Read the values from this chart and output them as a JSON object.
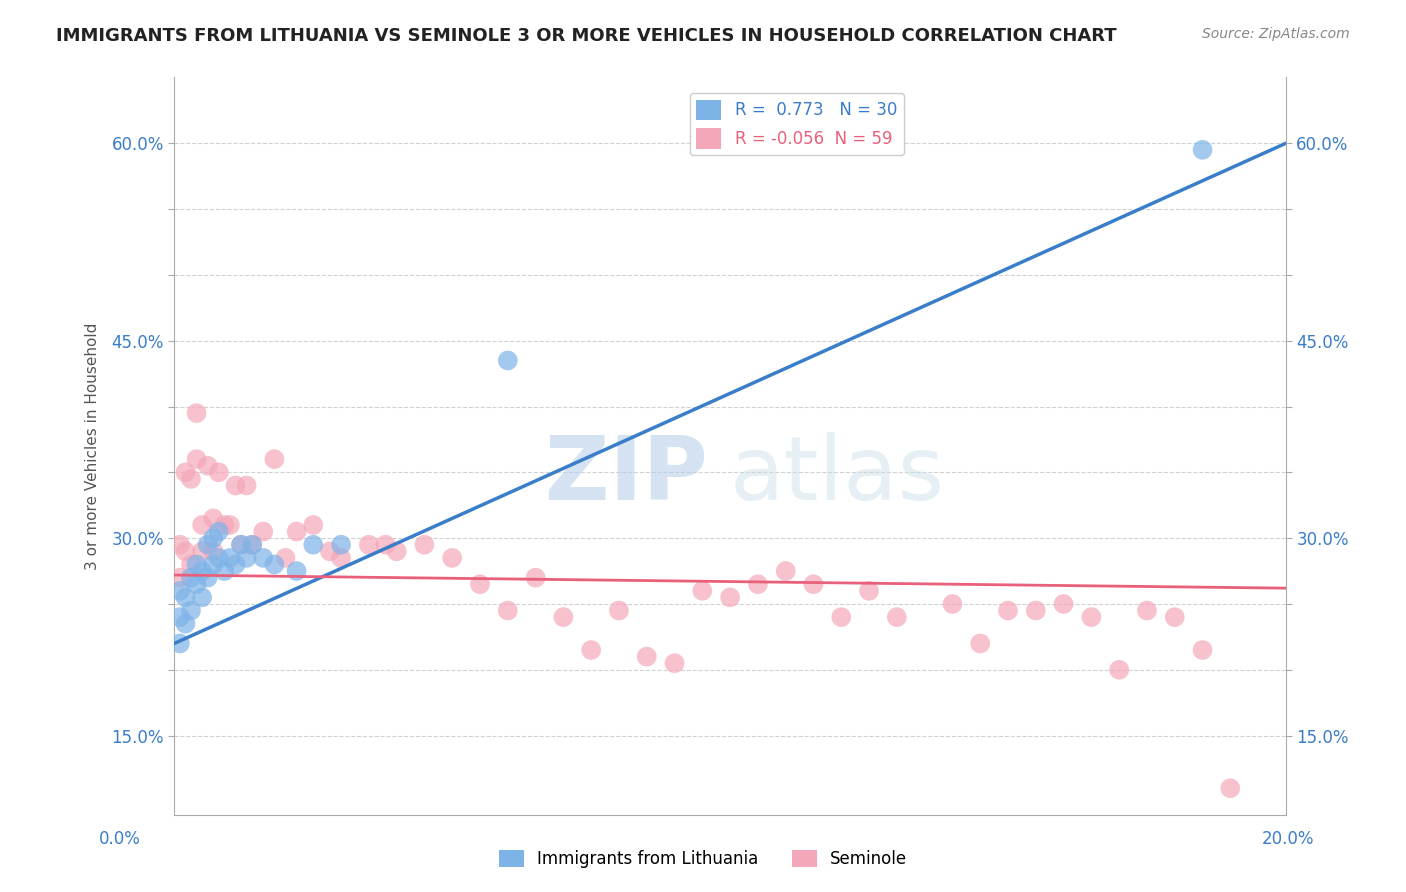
{
  "title": "IMMIGRANTS FROM LITHUANIA VS SEMINOLE 3 OR MORE VEHICLES IN HOUSEHOLD CORRELATION CHART",
  "source": "Source: ZipAtlas.com",
  "ylabel": "3 or more Vehicles in Household",
  "xlim": [
    0.0,
    0.2
  ],
  "ylim": [
    0.09,
    0.65
  ],
  "yticks": [
    0.15,
    0.2,
    0.25,
    0.3,
    0.35,
    0.4,
    0.45,
    0.5,
    0.55,
    0.6
  ],
  "ytick_labels": [
    "15.0%",
    "",
    "",
    "30.0%",
    "",
    "",
    "45.0%",
    "",
    "",
    "60.0%"
  ],
  "blue_R": 0.773,
  "blue_N": 30,
  "pink_R": -0.056,
  "pink_N": 59,
  "blue_color": "#7EB3E8",
  "pink_color": "#F4A7B9",
  "blue_line_color": "#3A7DC9",
  "pink_line_color": "#E8607A",
  "watermark_zip": "ZIP",
  "watermark_atlas": "atlas",
  "blue_scatter_x": [
    0.001,
    0.001,
    0.001,
    0.002,
    0.002,
    0.003,
    0.003,
    0.004,
    0.004,
    0.005,
    0.005,
    0.006,
    0.006,
    0.007,
    0.007,
    0.008,
    0.008,
    0.009,
    0.01,
    0.011,
    0.012,
    0.013,
    0.014,
    0.016,
    0.018,
    0.022,
    0.025,
    0.03,
    0.06,
    0.185
  ],
  "blue_scatter_y": [
    0.24,
    0.22,
    0.26,
    0.235,
    0.255,
    0.245,
    0.27,
    0.265,
    0.28,
    0.255,
    0.275,
    0.27,
    0.295,
    0.28,
    0.3,
    0.285,
    0.305,
    0.275,
    0.285,
    0.28,
    0.295,
    0.285,
    0.295,
    0.285,
    0.28,
    0.275,
    0.295,
    0.295,
    0.435,
    0.595
  ],
  "pink_scatter_x": [
    0.001,
    0.001,
    0.002,
    0.002,
    0.003,
    0.003,
    0.004,
    0.004,
    0.005,
    0.005,
    0.006,
    0.007,
    0.007,
    0.008,
    0.009,
    0.01,
    0.011,
    0.012,
    0.013,
    0.014,
    0.016,
    0.018,
    0.02,
    0.022,
    0.025,
    0.028,
    0.03,
    0.035,
    0.038,
    0.04,
    0.045,
    0.05,
    0.055,
    0.06,
    0.065,
    0.07,
    0.075,
    0.08,
    0.085,
    0.09,
    0.095,
    0.1,
    0.105,
    0.11,
    0.115,
    0.12,
    0.125,
    0.13,
    0.14,
    0.145,
    0.15,
    0.155,
    0.16,
    0.165,
    0.17,
    0.175,
    0.18,
    0.185,
    0.19
  ],
  "pink_scatter_y": [
    0.27,
    0.295,
    0.29,
    0.35,
    0.28,
    0.345,
    0.36,
    0.395,
    0.29,
    0.31,
    0.355,
    0.315,
    0.29,
    0.35,
    0.31,
    0.31,
    0.34,
    0.295,
    0.34,
    0.295,
    0.305,
    0.36,
    0.285,
    0.305,
    0.31,
    0.29,
    0.285,
    0.295,
    0.295,
    0.29,
    0.295,
    0.285,
    0.265,
    0.245,
    0.27,
    0.24,
    0.215,
    0.245,
    0.21,
    0.205,
    0.26,
    0.255,
    0.265,
    0.275,
    0.265,
    0.24,
    0.26,
    0.24,
    0.25,
    0.22,
    0.245,
    0.245,
    0.25,
    0.24,
    0.2,
    0.245,
    0.24,
    0.215,
    0.11
  ],
  "blue_line_x0": 0.0,
  "blue_line_y0": 0.22,
  "blue_line_x1": 0.2,
  "blue_line_y1": 0.6,
  "pink_line_x0": 0.0,
  "pink_line_y0": 0.272,
  "pink_line_x1": 0.2,
  "pink_line_y1": 0.262,
  "background_color": "#FFFFFF",
  "grid_color": "#CCCCCC"
}
